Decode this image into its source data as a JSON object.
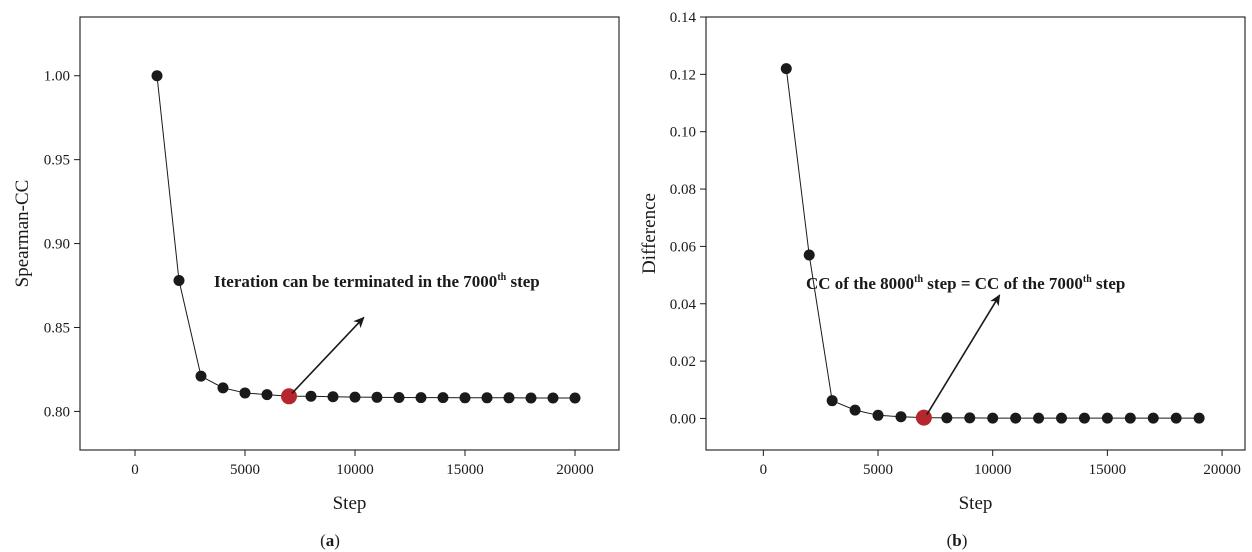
{
  "chart_data": [
    {
      "type": "scatter",
      "panel_label": "(a)",
      "xlabel": "Step",
      "ylabel": "Spearman-CC",
      "xlim": [
        -2500,
        22000
      ],
      "ylim": [
        0.777,
        1.035
      ],
      "xticks": [
        0,
        5000,
        10000,
        15000,
        20000
      ],
      "xtick_labels": [
        "0",
        "5000",
        "10000",
        "15000",
        "20000"
      ],
      "yticks": [
        0.8,
        0.85,
        0.9,
        0.95,
        1.0
      ],
      "ytick_labels": [
        "0.80",
        "0.85",
        "0.90",
        "0.95",
        "1.00"
      ],
      "grid": false,
      "series": [
        {
          "marker_color": "#1a1a1a",
          "line": true,
          "x": [
            1000,
            2000,
            3000,
            4000,
            5000,
            6000,
            7000,
            8000,
            9000,
            10000,
            11000,
            12000,
            13000,
            14000,
            15000,
            16000,
            17000,
            18000,
            19000,
            20000
          ],
          "y": [
            1.0,
            0.878,
            0.821,
            0.814,
            0.811,
            0.81,
            0.809,
            0.809,
            0.8087,
            0.8085,
            0.8084,
            0.8083,
            0.8082,
            0.8082,
            0.8081,
            0.8081,
            0.8081,
            0.808,
            0.808,
            0.808
          ]
        }
      ],
      "highlight": {
        "x": 7000,
        "y": 0.809,
        "color": "#b5262d"
      },
      "annotation": {
        "parts": [
          "Iteration can be terminated in the 7000",
          "th",
          " step"
        ],
        "arrow_from": [
          7000,
          0.809
        ],
        "arrow_to": [
          10400,
          0.856
        ]
      }
    },
    {
      "type": "scatter",
      "panel_label": "(b)",
      "xlabel": "Step",
      "ylabel": "Difference",
      "xlim": [
        -2500,
        21000
      ],
      "ylim": [
        -0.011,
        0.14
      ],
      "xticks": [
        0,
        5000,
        10000,
        15000,
        20000
      ],
      "xtick_labels": [
        "0",
        "5000",
        "10000",
        "15000",
        "20000"
      ],
      "yticks": [
        0.0,
        0.02,
        0.04,
        0.06,
        0.08,
        0.1,
        0.12,
        0.14
      ],
      "ytick_labels": [
        "0.00",
        "0.02",
        "0.04",
        "0.06",
        "0.08",
        "0.10",
        "0.12",
        "0.14"
      ],
      "grid": false,
      "series": [
        {
          "marker_color": "#1a1a1a",
          "line": true,
          "x": [
            1000,
            2000,
            3000,
            4000,
            5000,
            6000,
            7000,
            8000,
            9000,
            10000,
            11000,
            12000,
            13000,
            14000,
            15000,
            16000,
            17000,
            18000,
            19000
          ],
          "y": [
            0.122,
            0.057,
            0.0062,
            0.0029,
            0.0011,
            0.0006,
            0.0003,
            0.0002,
            0.0002,
            0.0001,
            0.0001,
            0.0001,
            0.0001,
            0.0001,
            0.0001,
            0.0001,
            0.0001,
            0.0001,
            0.0001
          ]
        }
      ],
      "highlight": {
        "x": 7000,
        "y": 0.0003,
        "color": "#b5262d"
      },
      "annotation": {
        "parts_a": [
          "CC of the 8000",
          "th",
          " step = CC of the 7000",
          "th",
          " step"
        ],
        "arrow_from": [
          7000,
          0.0003
        ],
        "arrow_to": [
          10300,
          0.043
        ]
      }
    }
  ]
}
